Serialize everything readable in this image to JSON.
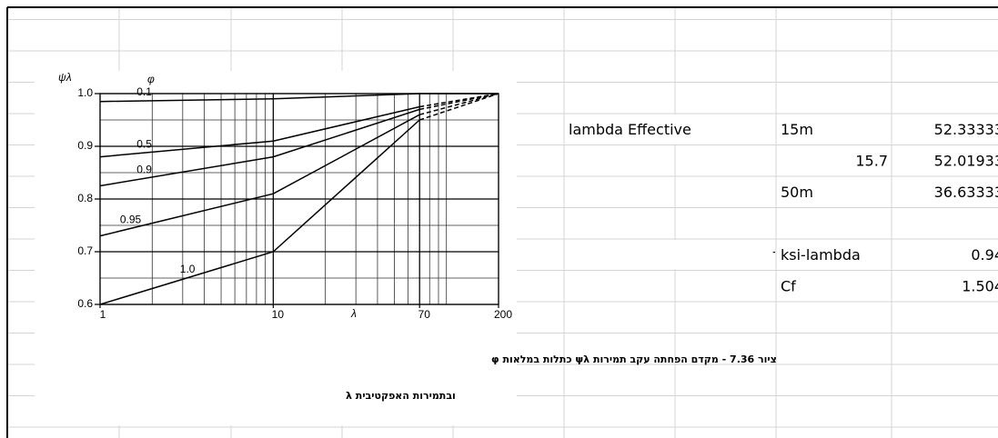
{
  "sheet": {
    "rows": [
      {
        "label": "lambda Effective",
        "key": "15m",
        "value": "52.33333"
      },
      {
        "key": "15.7",
        "value": "52.01933"
      },
      {
        "key": "50m",
        "value": "36.63333"
      },
      {
        "label": "7.36 ציור",
        "key": "ksi-lambda",
        "value": "0.94"
      },
      {
        "key": "Cf",
        "value": "1.504"
      }
    ]
  },
  "figure": {
    "y_label": "ψλ",
    "phi_label": "φ",
    "x_label": "λ",
    "log_x": true,
    "xlim": [
      1,
      200
    ],
    "ylim": [
      0.6,
      1.0
    ],
    "xticks": [
      1,
      10,
      70,
      200
    ],
    "yticks": [
      0.6,
      0.7,
      0.8,
      0.9,
      {
        "value": 1,
        "label": "1.0"
      }
    ],
    "series": [
      {
        "name": "0.1",
        "x": [
          1,
          10,
          70,
          200
        ],
        "values": [
          0.985,
          0.99,
          1.0,
          1.0
        ]
      },
      {
        "name": "0.5",
        "x": [
          1,
          10,
          70,
          200
        ],
        "values": [
          0.88,
          0.91,
          0.975,
          1.0
        ]
      },
      {
        "name": "0.9",
        "x": [
          1,
          10,
          70,
          200
        ],
        "values": [
          0.825,
          0.88,
          0.97,
          1.0
        ]
      },
      {
        "name": "0.95",
        "x": [
          1,
          10,
          70,
          200
        ],
        "values": [
          0.73,
          0.81,
          0.96,
          1.0
        ]
      },
      {
        "name": "1.0",
        "x": [
          1,
          10,
          70,
          200
        ],
        "values": [
          0.6,
          0.7,
          0.95,
          1.0
        ]
      }
    ],
    "caption": [
      "ציור 7.36 - מקדם הפחתה עקב תמירות ψλ כתלות במלאות φ",
      "ובתמירות האפקטיבית λ"
    ]
  }
}
